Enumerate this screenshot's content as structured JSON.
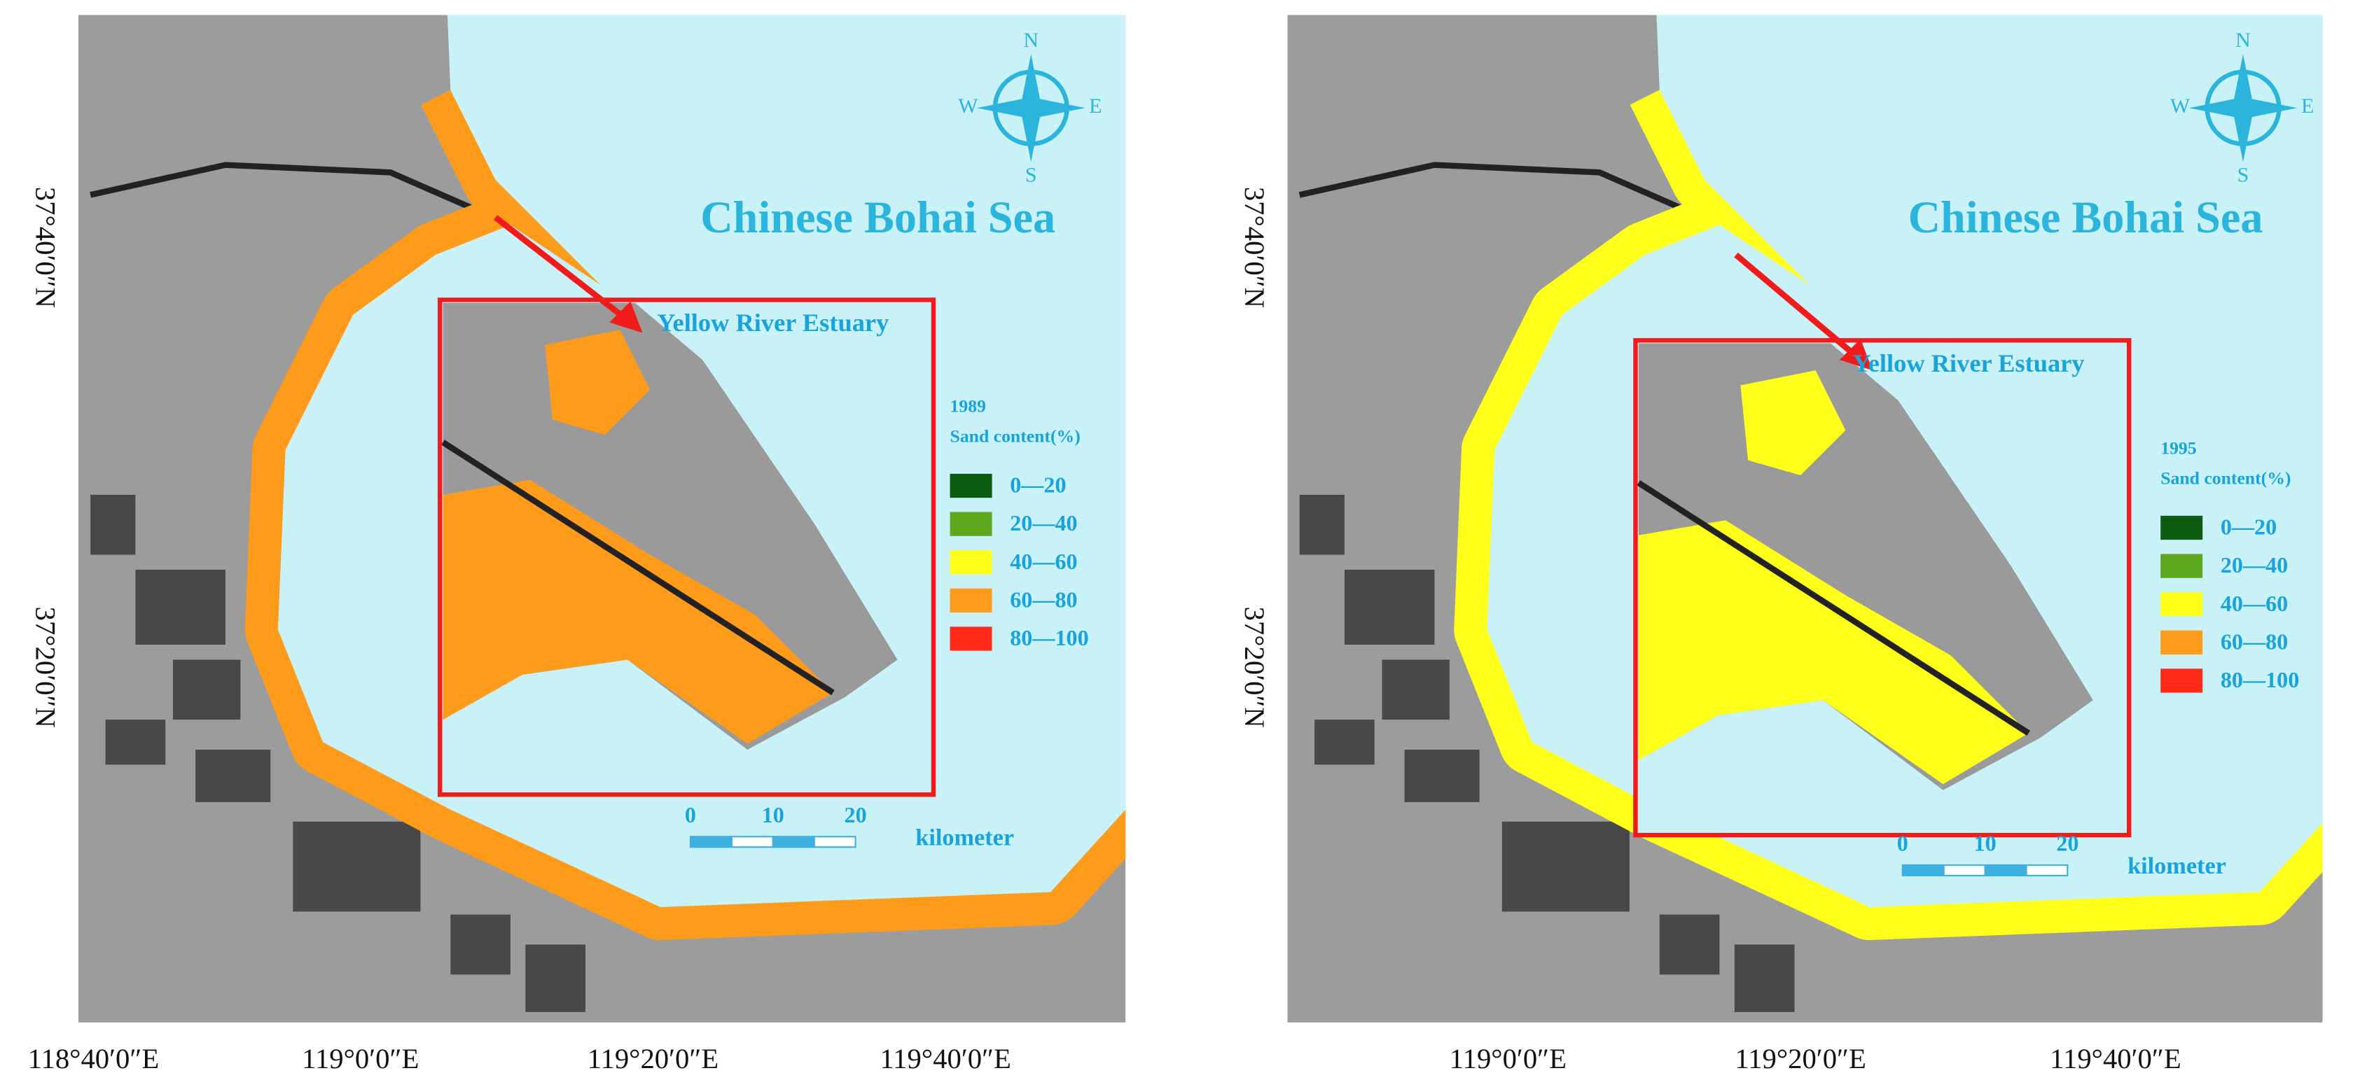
{
  "panels": [
    {
      "title": "Chinese Bohai Sea",
      "inset_label": "Yellow River Estuary",
      "year": "1989",
      "legend_title": "Sand content(%)",
      "legend": [
        {
          "label": "0—20",
          "color": "#0b5c10"
        },
        {
          "label": "20—40",
          "color": "#5ea81e"
        },
        {
          "label": "40—60",
          "color": "#ffff1a"
        },
        {
          "label": "60—80",
          "color": "#ff9b1a"
        },
        {
          "label": "80—100",
          "color": "#ff2b16"
        }
      ],
      "scale": [
        "0",
        "10",
        "20"
      ],
      "scale_unit": "kilometer",
      "compass": [
        "N",
        "S",
        "W",
        "E"
      ],
      "y_labels": [
        "37°40′0″N",
        "37°20′0″N"
      ],
      "x_labels": [
        "118°40′0″E",
        "119°0′0″E",
        "119°20′0″E",
        "119°40′0″E"
      ]
    },
    {
      "title": "Chinese Bohai Sea",
      "inset_label": "Yellow River Estuary",
      "year": "1995",
      "legend_title": "Sand content(%)",
      "legend": [
        {
          "label": "0—20",
          "color": "#0b5c10"
        },
        {
          "label": "20—40",
          "color": "#5ea81e"
        },
        {
          "label": "40—60",
          "color": "#ffff1a"
        },
        {
          "label": "60—80",
          "color": "#ff9b1a"
        },
        {
          "label": "80—100",
          "color": "#ff2b16"
        }
      ],
      "scale": [
        "0",
        "10",
        "20"
      ],
      "scale_unit": "kilometer",
      "compass": [
        "N",
        "S",
        "W",
        "E"
      ],
      "y_labels": [
        "37°40′0″N",
        "37°20′0″N"
      ],
      "x_labels": [
        "119°0′0″E",
        "119°20′0″E",
        "119°40′0″E"
      ]
    }
  ]
}
